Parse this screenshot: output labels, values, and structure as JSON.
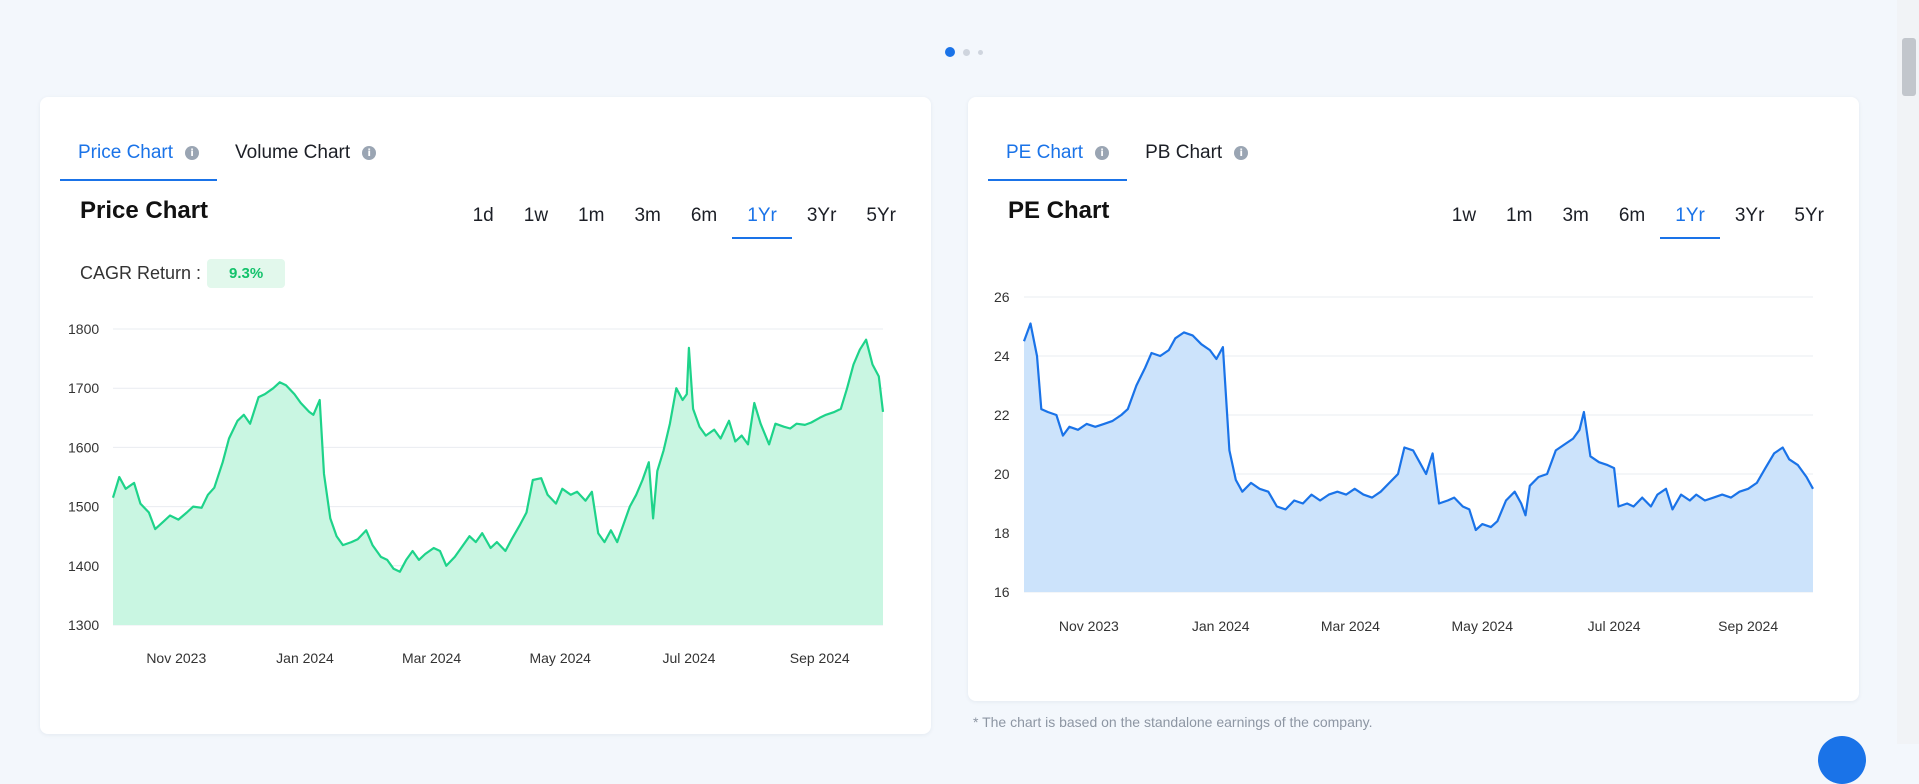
{
  "carousel": {
    "count": 3,
    "active": 0
  },
  "left_card": {
    "tabs": [
      {
        "label": "Price Chart",
        "active": true
      },
      {
        "label": "Volume Chart",
        "active": false
      }
    ],
    "title": "Price Chart",
    "periods": [
      "1d",
      "1w",
      "1m",
      "3m",
      "6m",
      "1Yr",
      "3Yr",
      "5Yr"
    ],
    "active_period": "1Yr",
    "cagr_label": "CAGR Return :",
    "cagr_value": "9.3%"
  },
  "right_card": {
    "tabs": [
      {
        "label": "PE Chart",
        "active": true
      },
      {
        "label": "PB Chart",
        "active": false
      }
    ],
    "title": "PE Chart",
    "periods": [
      "1w",
      "1m",
      "3m",
      "6m",
      "1Yr",
      "3Yr",
      "5Yr"
    ],
    "active_period": "1Yr"
  },
  "footnote": "* The chart is based on the standalone earnings of the company.",
  "colors": {
    "accent": "#1a73e8",
    "price_line": "#1ed38a",
    "price_fill": "#c9f6e2",
    "pe_line": "#1a73e8",
    "pe_fill": "#cce3fb"
  },
  "chart_data": [
    {
      "type": "area",
      "title": "Price Chart",
      "x_label_ticks": [
        "Nov 2023",
        "Jan 2024",
        "Mar 2024",
        "May 2024",
        "Jul 2024",
        "Sep 2024"
      ],
      "y_ticks": [
        1300,
        1400,
        1500,
        1600,
        1700,
        1800
      ],
      "ylim": [
        1300,
        1800
      ],
      "x_start": "2023-10-16",
      "x_end": "2024-10-15",
      "grid": true,
      "series": [
        {
          "points": [
            [
              "2023-10-16",
              1515
            ],
            [
              "2023-10-19",
              1550
            ],
            [
              "2023-10-22",
              1530
            ],
            [
              "2023-10-26",
              1540
            ],
            [
              "2023-10-29",
              1505
            ],
            [
              "2023-11-02",
              1490
            ],
            [
              "2023-11-05",
              1462
            ],
            [
              "2023-11-09",
              1475
            ],
            [
              "2023-11-12",
              1485
            ],
            [
              "2023-11-16",
              1478
            ],
            [
              "2023-11-20",
              1490
            ],
            [
              "2023-11-23",
              1500
            ],
            [
              "2023-11-27",
              1498
            ],
            [
              "2023-11-30",
              1520
            ],
            [
              "2023-12-03",
              1532
            ],
            [
              "2023-12-07",
              1575
            ],
            [
              "2023-12-10",
              1615
            ],
            [
              "2023-12-14",
              1645
            ],
            [
              "2023-12-17",
              1655
            ],
            [
              "2023-12-20",
              1640
            ],
            [
              "2023-12-24",
              1685
            ],
            [
              "2023-12-27",
              1690
            ],
            [
              "2023-12-31",
              1700
            ],
            [
              "2024-01-03",
              1710
            ],
            [
              "2024-01-06",
              1705
            ],
            [
              "2024-01-10",
              1690
            ],
            [
              "2024-01-13",
              1675
            ],
            [
              "2024-01-17",
              1660
            ],
            [
              "2024-01-19",
              1655
            ],
            [
              "2024-01-22",
              1680
            ],
            [
              "2024-01-24",
              1555
            ],
            [
              "2024-01-27",
              1480
            ],
            [
              "2024-01-30",
              1450
            ],
            [
              "2024-02-02",
              1435
            ],
            [
              "2024-02-06",
              1440
            ],
            [
              "2024-02-09",
              1445
            ],
            [
              "2024-02-13",
              1460
            ],
            [
              "2024-02-16",
              1435
            ],
            [
              "2024-02-20",
              1415
            ],
            [
              "2024-02-23",
              1410
            ],
            [
              "2024-02-26",
              1395
            ],
            [
              "2024-02-29",
              1390
            ],
            [
              "2024-03-03",
              1410
            ],
            [
              "2024-03-06",
              1425
            ],
            [
              "2024-03-09",
              1410
            ],
            [
              "2024-03-12",
              1420
            ],
            [
              "2024-03-16",
              1430
            ],
            [
              "2024-03-19",
              1425
            ],
            [
              "2024-03-22",
              1400
            ],
            [
              "2024-03-26",
              1415
            ],
            [
              "2024-03-29",
              1430
            ],
            [
              "2024-04-02",
              1450
            ],
            [
              "2024-04-05",
              1440
            ],
            [
              "2024-04-08",
              1455
            ],
            [
              "2024-04-12",
              1430
            ],
            [
              "2024-04-15",
              1440
            ],
            [
              "2024-04-19",
              1425
            ],
            [
              "2024-04-22",
              1445
            ],
            [
              "2024-04-26",
              1470
            ],
            [
              "2024-04-29",
              1490
            ],
            [
              "2024-05-02",
              1545
            ],
            [
              "2024-05-06",
              1548
            ],
            [
              "2024-05-09",
              1520
            ],
            [
              "2024-05-13",
              1505
            ],
            [
              "2024-05-16",
              1530
            ],
            [
              "2024-05-20",
              1520
            ],
            [
              "2024-05-23",
              1525
            ],
            [
              "2024-05-27",
              1510
            ],
            [
              "2024-05-30",
              1525
            ],
            [
              "2024-06-02",
              1455
            ],
            [
              "2024-06-05",
              1440
            ],
            [
              "2024-06-08",
              1460
            ],
            [
              "2024-06-11",
              1440
            ],
            [
              "2024-06-14",
              1470
            ],
            [
              "2024-06-17",
              1500
            ],
            [
              "2024-06-20",
              1520
            ],
            [
              "2024-06-23",
              1545
            ],
            [
              "2024-06-26",
              1575
            ],
            [
              "2024-06-28",
              1480
            ],
            [
              "2024-06-30",
              1560
            ],
            [
              "2024-07-03",
              1595
            ],
            [
              "2024-07-06",
              1640
            ],
            [
              "2024-07-09",
              1700
            ],
            [
              "2024-07-12",
              1680
            ],
            [
              "2024-07-14",
              1690
            ],
            [
              "2024-07-15",
              1768
            ],
            [
              "2024-07-17",
              1665
            ],
            [
              "2024-07-20",
              1635
            ],
            [
              "2024-07-23",
              1620
            ],
            [
              "2024-07-27",
              1630
            ],
            [
              "2024-07-30",
              1615
            ],
            [
              "2024-08-03",
              1645
            ],
            [
              "2024-08-06",
              1610
            ],
            [
              "2024-08-09",
              1620
            ],
            [
              "2024-08-12",
              1605
            ],
            [
              "2024-08-15",
              1675
            ],
            [
              "2024-08-18",
              1640
            ],
            [
              "2024-08-22",
              1605
            ],
            [
              "2024-08-25",
              1640
            ],
            [
              "2024-08-29",
              1635
            ],
            [
              "2024-09-01",
              1632
            ],
            [
              "2024-09-04",
              1640
            ],
            [
              "2024-09-08",
              1638
            ],
            [
              "2024-09-11",
              1642
            ],
            [
              "2024-09-15",
              1650
            ],
            [
              "2024-09-18",
              1655
            ],
            [
              "2024-09-22",
              1660
            ],
            [
              "2024-09-25",
              1665
            ],
            [
              "2024-09-28",
              1700
            ],
            [
              "2024-10-01",
              1740
            ],
            [
              "2024-10-04",
              1765
            ],
            [
              "2024-10-07",
              1782
            ],
            [
              "2024-10-10",
              1740
            ],
            [
              "2024-10-13",
              1720
            ],
            [
              "2024-10-15",
              1660
            ]
          ]
        }
      ]
    },
    {
      "type": "area",
      "title": "PE Chart",
      "x_label_ticks": [
        "Nov 2023",
        "Jan 2024",
        "Mar 2024",
        "May 2024",
        "Jul 2024",
        "Sep 2024"
      ],
      "y_ticks": [
        16,
        18,
        20,
        22,
        24,
        26
      ],
      "ylim": [
        16,
        26
      ],
      "x_start": "2023-10-16",
      "x_end": "2024-10-15",
      "grid": true,
      "series": [
        {
          "points": [
            [
              "2023-10-16",
              24.5
            ],
            [
              "2023-10-19",
              25.1
            ],
            [
              "2023-10-22",
              24.0
            ],
            [
              "2023-10-24",
              22.2
            ],
            [
              "2023-10-27",
              22.1
            ],
            [
              "2023-10-31",
              22.0
            ],
            [
              "2023-11-03",
              21.3
            ],
            [
              "2023-11-06",
              21.6
            ],
            [
              "2023-11-10",
              21.5
            ],
            [
              "2023-11-14",
              21.7
            ],
            [
              "2023-11-18",
              21.6
            ],
            [
              "2023-11-22",
              21.7
            ],
            [
              "2023-11-26",
              21.8
            ],
            [
              "2023-11-30",
              22.0
            ],
            [
              "2023-12-03",
              22.2
            ],
            [
              "2023-12-07",
              23.0
            ],
            [
              "2023-12-11",
              23.6
            ],
            [
              "2023-12-14",
              24.1
            ],
            [
              "2023-12-18",
              24.0
            ],
            [
              "2023-12-22",
              24.2
            ],
            [
              "2023-12-25",
              24.6
            ],
            [
              "2023-12-29",
              24.8
            ],
            [
              "2024-01-02",
              24.7
            ],
            [
              "2024-01-06",
              24.4
            ],
            [
              "2024-01-10",
              24.2
            ],
            [
              "2024-01-13",
              23.9
            ],
            [
              "2024-01-16",
              24.3
            ],
            [
              "2024-01-19",
              20.8
            ],
            [
              "2024-01-22",
              19.8
            ],
            [
              "2024-01-25",
              19.4
            ],
            [
              "2024-01-29",
              19.7
            ],
            [
              "2024-02-02",
              19.5
            ],
            [
              "2024-02-06",
              19.4
            ],
            [
              "2024-02-10",
              18.9
            ],
            [
              "2024-02-14",
              18.8
            ],
            [
              "2024-02-18",
              19.1
            ],
            [
              "2024-02-22",
              19.0
            ],
            [
              "2024-02-26",
              19.3
            ],
            [
              "2024-03-01",
              19.1
            ],
            [
              "2024-03-05",
              19.3
            ],
            [
              "2024-03-09",
              19.4
            ],
            [
              "2024-03-13",
              19.3
            ],
            [
              "2024-03-17",
              19.5
            ],
            [
              "2024-03-21",
              19.3
            ],
            [
              "2024-03-25",
              19.2
            ],
            [
              "2024-03-29",
              19.4
            ],
            [
              "2024-04-02",
              19.7
            ],
            [
              "2024-04-06",
              20.0
            ],
            [
              "2024-04-09",
              20.9
            ],
            [
              "2024-04-13",
              20.8
            ],
            [
              "2024-04-16",
              20.4
            ],
            [
              "2024-04-19",
              20.0
            ],
            [
              "2024-04-22",
              20.7
            ],
            [
              "2024-04-25",
              19.0
            ],
            [
              "2024-04-29",
              19.1
            ],
            [
              "2024-05-02",
              19.2
            ],
            [
              "2024-05-06",
              18.9
            ],
            [
              "2024-05-09",
              18.8
            ],
            [
              "2024-05-12",
              18.1
            ],
            [
              "2024-05-15",
              18.3
            ],
            [
              "2024-05-19",
              18.2
            ],
            [
              "2024-05-22",
              18.4
            ],
            [
              "2024-05-26",
              19.1
            ],
            [
              "2024-05-30",
              19.4
            ],
            [
              "2024-06-02",
              19.0
            ],
            [
              "2024-06-04",
              18.6
            ],
            [
              "2024-06-06",
              19.6
            ],
            [
              "2024-06-10",
              19.9
            ],
            [
              "2024-06-14",
              20.0
            ],
            [
              "2024-06-18",
              20.8
            ],
            [
              "2024-06-22",
              21.0
            ],
            [
              "2024-06-26",
              21.2
            ],
            [
              "2024-06-29",
              21.5
            ],
            [
              "2024-07-01",
              22.1
            ],
            [
              "2024-07-04",
              20.6
            ],
            [
              "2024-07-08",
              20.4
            ],
            [
              "2024-07-12",
              20.3
            ],
            [
              "2024-07-15",
              20.2
            ],
            [
              "2024-07-17",
              18.9
            ],
            [
              "2024-07-21",
              19.0
            ],
            [
              "2024-07-24",
              18.9
            ],
            [
              "2024-07-28",
              19.2
            ],
            [
              "2024-08-01",
              18.9
            ],
            [
              "2024-08-04",
              19.3
            ],
            [
              "2024-08-08",
              19.5
            ],
            [
              "2024-08-11",
              18.8
            ],
            [
              "2024-08-15",
              19.3
            ],
            [
              "2024-08-19",
              19.1
            ],
            [
              "2024-08-22",
              19.3
            ],
            [
              "2024-08-26",
              19.1
            ],
            [
              "2024-08-30",
              19.2
            ],
            [
              "2024-09-03",
              19.3
            ],
            [
              "2024-09-07",
              19.2
            ],
            [
              "2024-09-11",
              19.4
            ],
            [
              "2024-09-15",
              19.5
            ],
            [
              "2024-09-19",
              19.7
            ],
            [
              "2024-09-23",
              20.2
            ],
            [
              "2024-09-27",
              20.7
            ],
            [
              "2024-10-01",
              20.9
            ],
            [
              "2024-10-04",
              20.5
            ],
            [
              "2024-10-08",
              20.3
            ],
            [
              "2024-10-12",
              19.9
            ],
            [
              "2024-10-15",
              19.5
            ]
          ]
        }
      ]
    }
  ]
}
